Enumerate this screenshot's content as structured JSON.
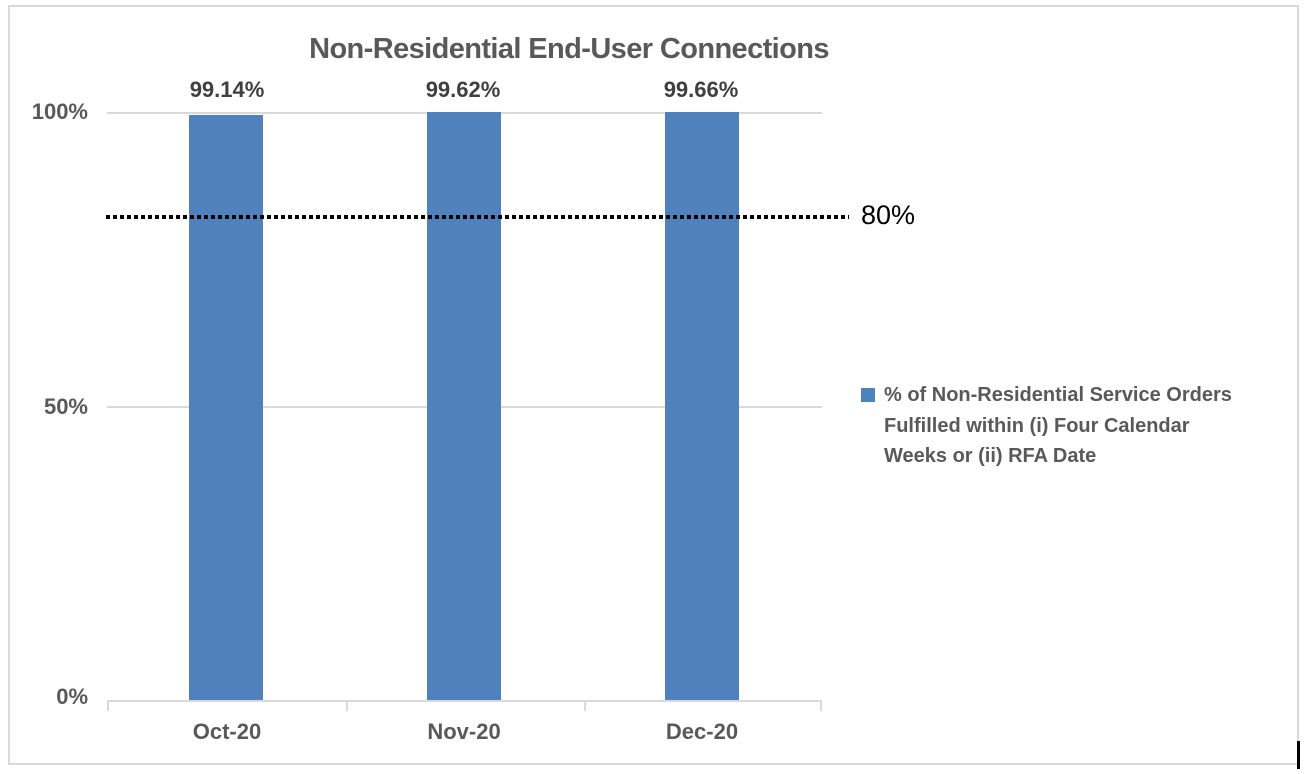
{
  "chart_data": {
    "type": "bar",
    "title": "Non-Residential End-User Connections",
    "categories": [
      "Oct-20",
      "Nov-20",
      "Dec-20"
    ],
    "series": [
      {
        "name": "% of Non-Residential Service Orders Fulfilled within (i) Four Calendar Weeks or (ii) RFA Date",
        "values": [
          99.14,
          99.62,
          99.66
        ],
        "color": "#4F81BD"
      }
    ],
    "data_labels": [
      "99.14%",
      "99.62%",
      "99.66%"
    ],
    "xlabel": "",
    "ylabel": "",
    "ylim": [
      0,
      100
    ],
    "y_ticks": [
      {
        "label": "100%",
        "value": 100
      },
      {
        "label": "50%",
        "value": 50
      },
      {
        "label": "0%",
        "value": 0
      }
    ],
    "reference_line": {
      "value": 80,
      "label": "80%",
      "style": "dotted",
      "color": "#000000"
    },
    "grid": true,
    "legend_position": "right"
  },
  "legend": {
    "marker_color": "#4F81BD",
    "lines": [
      "% of Non-Residential Service Orders",
      "Fulfilled within (i) Four Calendar",
      "Weeks or (ii) RFA Date"
    ]
  },
  "colors": {
    "bar": "#4F81BD",
    "grid": "#D9D9D9",
    "axis_text": "#595959",
    "data_label_text": "#3F3F3F",
    "reference_line": "#000000",
    "border": "#D9D9D9"
  }
}
